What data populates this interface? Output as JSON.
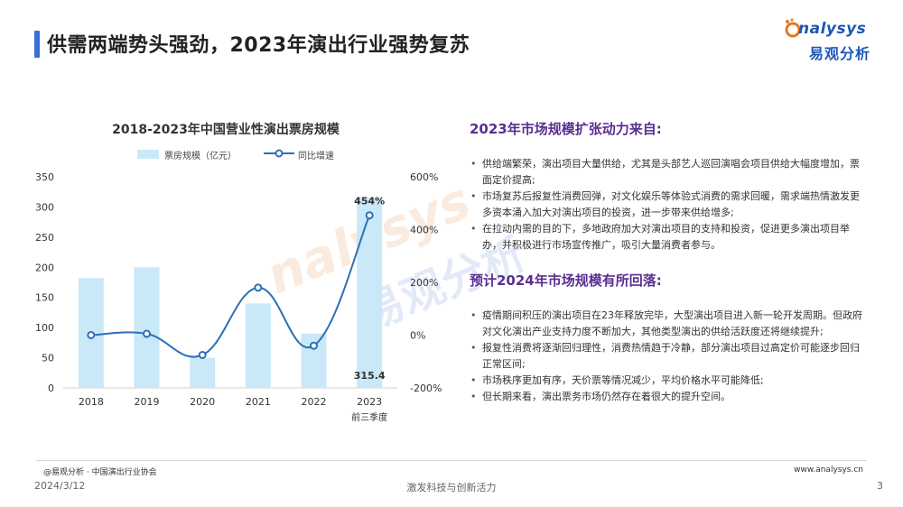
{
  "header": {
    "title": "供需两端势头强劲，2023年演出行业强势复苏",
    "logo_word": "nalysys",
    "logo_cn": "易观分析"
  },
  "chart_data": {
    "type": "bar",
    "title": "2018-2023年中国营业性演出票房规模",
    "categories": [
      "2018",
      "2019",
      "2020",
      "2021",
      "2022",
      "2023"
    ],
    "category_sub": [
      "",
      "",
      "",
      "",
      "",
      "前三季度"
    ],
    "series": [
      {
        "name": "票房规模（亿元）",
        "type": "bar",
        "axis": "left",
        "color": "#c9e8f8",
        "values": [
          182,
          200,
          50,
          140,
          90,
          315.4
        ]
      },
      {
        "name": "同比增速",
        "type": "line",
        "axis": "right",
        "color": "#2e6fb7",
        "values": [
          0,
          5,
          -75,
          180,
          -40,
          454
        ]
      }
    ],
    "ylim_left": [
      0,
      350
    ],
    "yticks_left": [
      "0",
      "50",
      "100",
      "150",
      "200",
      "250",
      "300",
      "350"
    ],
    "ylim_right": [
      -200,
      600
    ],
    "yticks_right": [
      "-200%",
      "0%",
      "200%",
      "400%",
      "600%"
    ],
    "data_labels": {
      "bar_2023": "315.4",
      "line_2023": "454%"
    },
    "legend_position": "top",
    "grid": false
  },
  "right_panel": {
    "section1_title": "2023年市场规模扩张动力来自:",
    "section1_bullets": [
      "供给端繁荣，演出项目大量供给，尤其是头部艺人巡回演唱会项目供给大幅度增加，票面定价提高;",
      "市场复苏后报复性消费回弹，对文化娱乐等体验式消费的需求回暖，需求端热情激发更多资本涌入加大对演出项目的投资，进一步带来供给增多;",
      "在拉动内需的目的下，多地政府加大对演出项目的支持和投资，促进更多演出项目举办，并积极进行市场宣传推广，吸引大量消费者参与。"
    ],
    "section2_title": "预计2024年市场规模有所回落:",
    "section2_bullets": [
      "疫情期间积压的演出项目在23年释放完毕，大型演出项目进入新一轮开发周期。但政府对文化演出产业支持力度不断加大，其他类型演出的供给活跃度还将继续提升;",
      "报复性消费将逐渐回归理性，消费热情趋于冷静，部分演出项目过高定价可能逐步回归正常区间;",
      "市场秩序更加有序，天价票等情况减少，平均价格水平可能降低;",
      "但长期来看，演出票务市场仍然存在着很大的提升空间。"
    ]
  },
  "watermark": {
    "word": "nalysys",
    "cn": "易观分析"
  },
  "footer": {
    "source": "@易观分析 · 中国演出行业协会",
    "site": "www.analysys.cn",
    "date": "2024/3/12",
    "tagline": "激发科技与创新活力",
    "page_number": "3"
  }
}
